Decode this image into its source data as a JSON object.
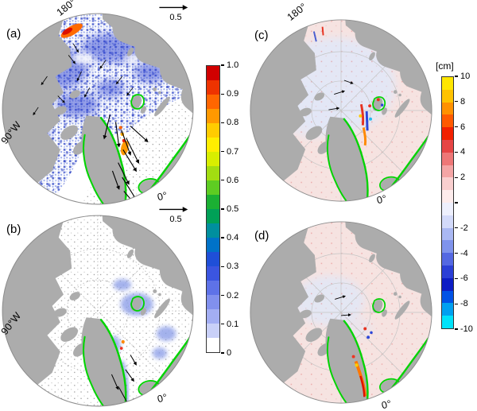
{
  "figure": {
    "panels": {
      "a": {
        "label": "(a)",
        "meridian_top": "180°",
        "meridian_left": "90°W",
        "meridian_bottom": "0°",
        "vector_scale": "0.5"
      },
      "b": {
        "label": "(b)",
        "meridian_left": "90°W",
        "meridian_bottom": "0°",
        "vector_scale": "0.5"
      },
      "c": {
        "label": "(c)",
        "meridian_top": "180°",
        "meridian_bottom": "0°"
      },
      "d": {
        "label": "(d)",
        "meridian_bottom": "0°"
      }
    },
    "colorbars": {
      "correlation": {
        "ticks": [
          "1.0",
          "0.9",
          "0.8",
          "0.7",
          "0.6",
          "0.5",
          "0.4",
          "0.3",
          "0.2",
          "0.1",
          "0"
        ],
        "colors": [
          "#d10000",
          "#ee3300",
          "#ff6600",
          "#ff9900",
          "#ffcc00",
          "#ffee00",
          "#d8ee00",
          "#a2dd11",
          "#5ecc22",
          "#1bb033",
          "#00a057",
          "#008f9e",
          "#0072c8",
          "#1f4fd8",
          "#3b55e0",
          "#5e72e8",
          "#8190ee",
          "#a3aef3",
          "#c9d0f8",
          "#ffffff"
        ]
      },
      "cm": {
        "title": "[cm]",
        "ticks": [
          "10",
          "8",
          "6",
          "4",
          "2",
          "",
          "-2",
          "-4",
          "-6",
          "-8",
          "-10"
        ],
        "colors": [
          "#ffe600",
          "#ffc200",
          "#ff9100",
          "#ff5a00",
          "#f22000",
          "#e64545",
          "#ee7777",
          "#f4a5a5",
          "#f9cfcf",
          "#fdecec",
          "#eef0fd",
          "#d3dafa",
          "#aab8f3",
          "#7f93ec",
          "#5468e2",
          "#2b3fd6",
          "#0d1dc4",
          "#0052e6",
          "#00a0f0",
          "#00e2fa"
        ]
      }
    },
    "map_colors": {
      "land": "#acacac",
      "ocean_left": "#ffffff",
      "ocean_right": "#f6e3e1",
      "coastline": "#00d400"
    }
  }
}
